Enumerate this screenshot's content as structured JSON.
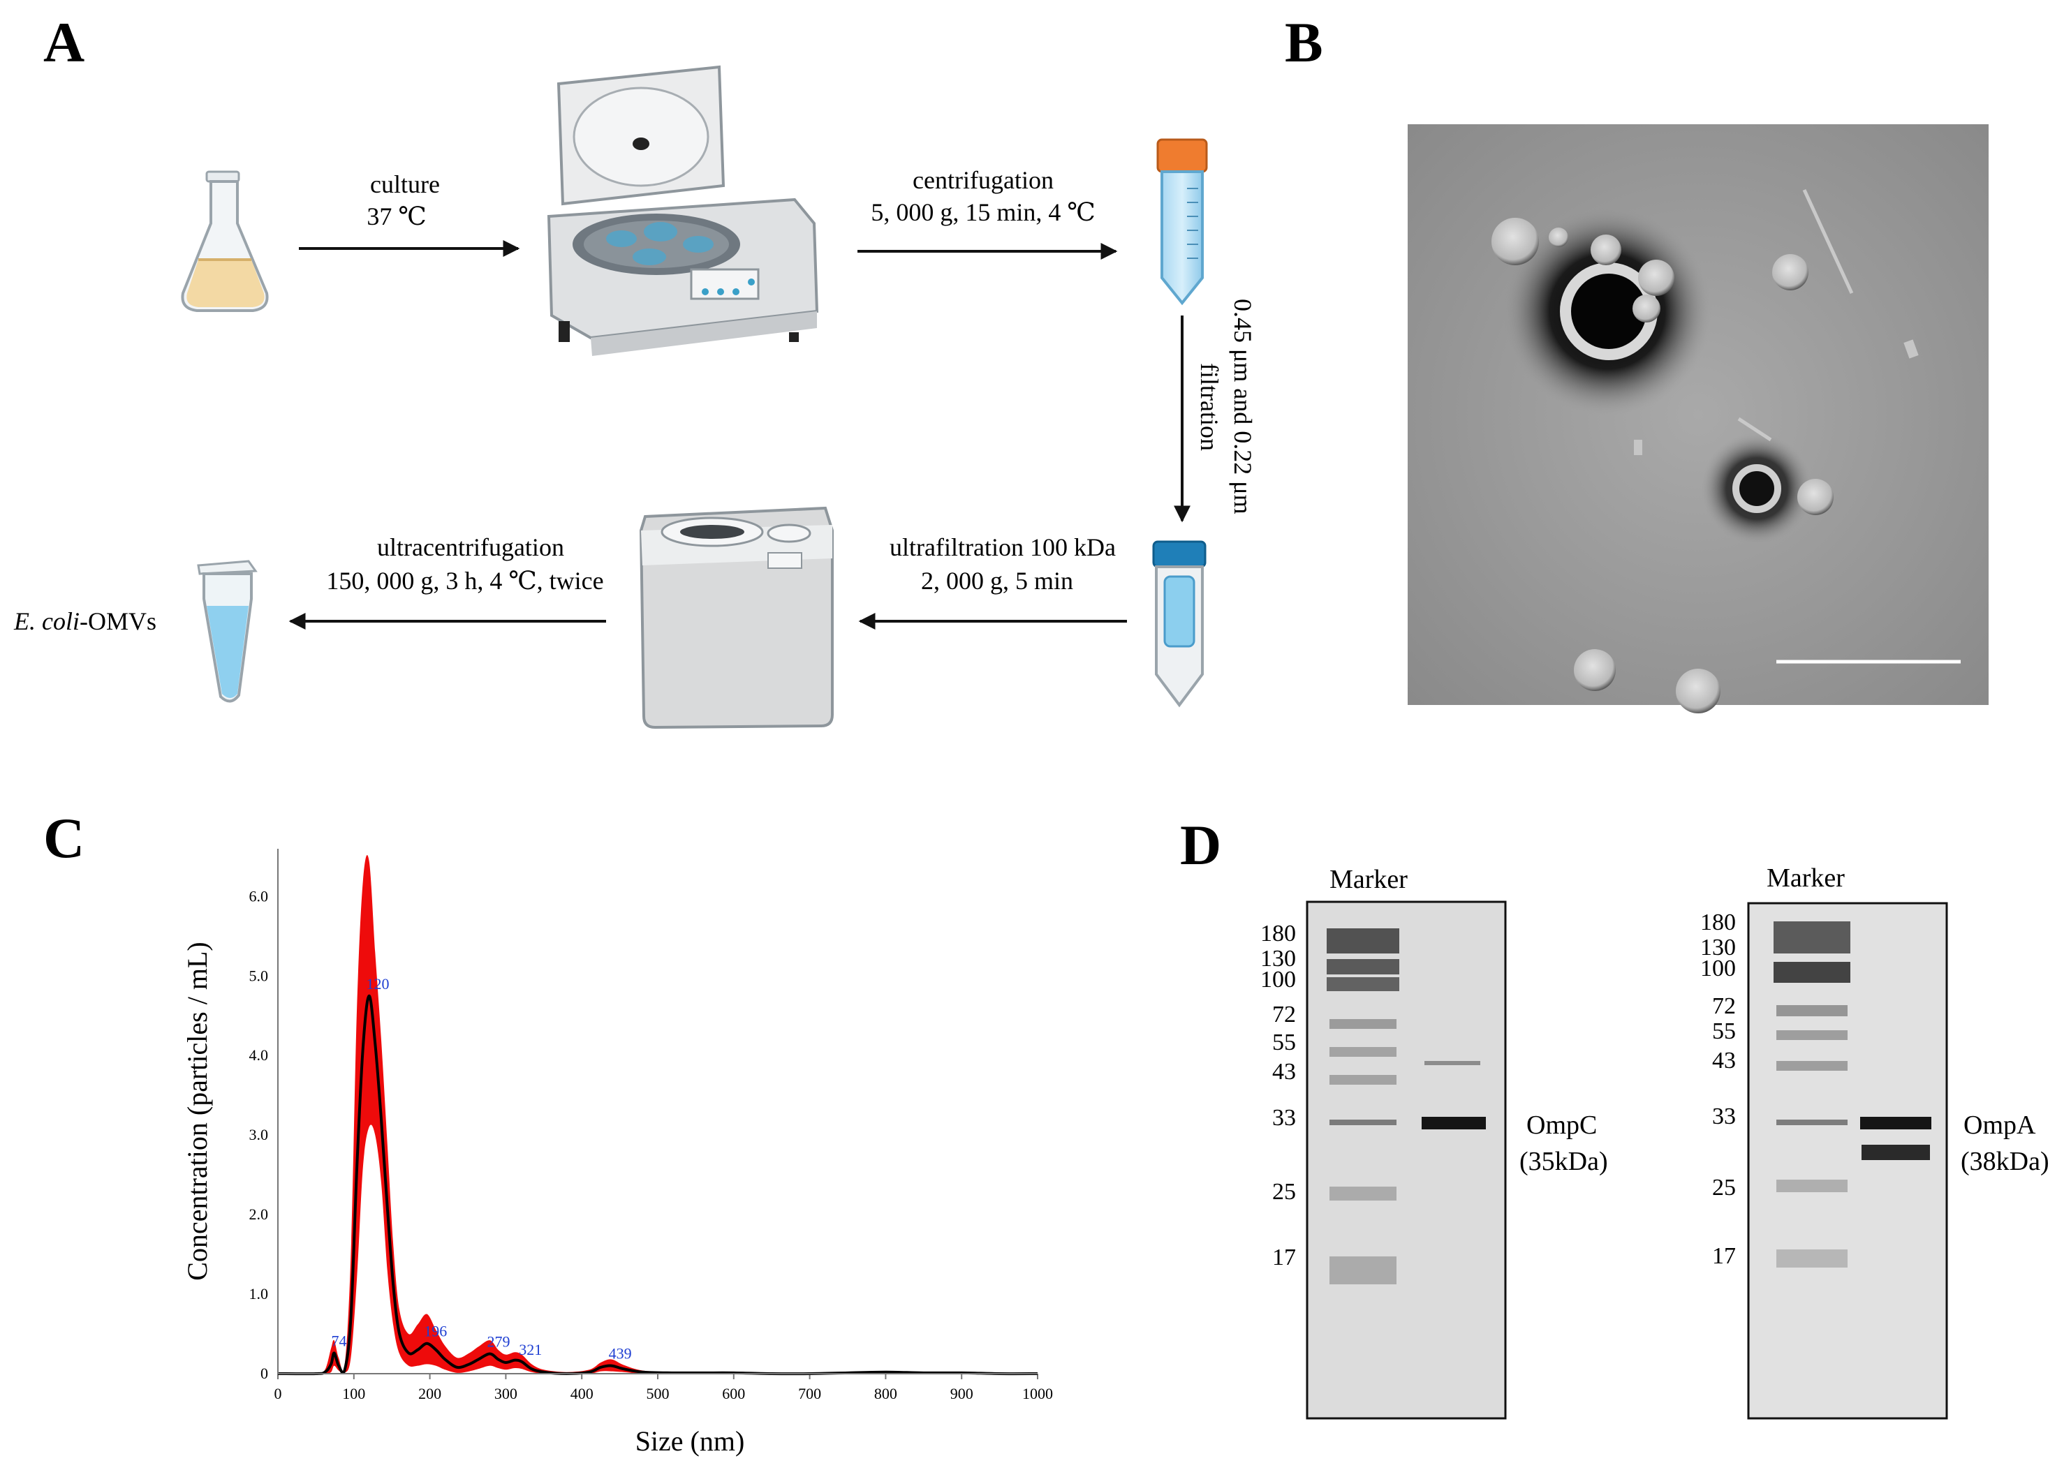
{
  "panels": {
    "A": {
      "letter": "A",
      "steps": {
        "s1": [
          "culture",
          "37 ℃"
        ],
        "s2": [
          "centrifugation",
          "5, 000 g, 15 min, 4 ℃"
        ],
        "s3": [
          "0.45 μm and 0.22 μm",
          "filtration"
        ],
        "s4": [
          "ultrafiltration 100 kDa",
          "2, 000 g, 5 min"
        ],
        "s5": [
          "ultracentrifugation",
          "150, 000 g, 3 h, 4 ℃, twice"
        ]
      },
      "product_italic": "E. coli",
      "product_rest": "-OMVs"
    },
    "B": {
      "letter": "B"
    },
    "C": {
      "letter": "C"
    },
    "D": {
      "letter": "D",
      "blots": [
        {
          "marker_label": "Marker",
          "ladder": [
            "180",
            "130",
            "100",
            "72",
            "55",
            "43",
            "33",
            "25",
            "17"
          ],
          "protein": "OmpC",
          "mass": "(35kDa)"
        },
        {
          "marker_label": "Marker",
          "ladder": [
            "180",
            "130",
            "100",
            "72",
            "55",
            "43",
            "33",
            "25",
            "17"
          ],
          "protein": "OmpA",
          "mass": "(38kDa)"
        }
      ]
    }
  },
  "chart_data": {
    "type": "area",
    "xlabel": "Size (nm)",
    "ylabel": "Concentration (particles / mL)",
    "xlim": [
      0,
      1000
    ],
    "ylim": [
      0,
      6.6
    ],
    "xticks": [
      0,
      100,
      200,
      300,
      400,
      500,
      600,
      700,
      800,
      900,
      1000
    ],
    "yticks": [
      {
        "v": 0,
        "label": "0"
      },
      {
        "v": 1,
        "label": "1.0"
      },
      {
        "v": 2,
        "label": "2.0"
      },
      {
        "v": 3,
        "label": "3.0"
      },
      {
        "v": 4,
        "label": "4.0"
      },
      {
        "v": 5,
        "label": "5.0"
      },
      {
        "v": 6,
        "label": "6.0"
      }
    ],
    "mean": {
      "x": [
        0,
        50,
        62,
        70,
        74,
        80,
        88,
        96,
        104,
        112,
        120,
        128,
        136,
        144,
        152,
        160,
        172,
        184,
        196,
        208,
        220,
        236,
        252,
        264,
        279,
        290,
        300,
        312,
        321,
        334,
        350,
        380,
        410,
        425,
        439,
        455,
        480,
        520,
        560,
        600,
        650,
        700,
        750,
        800,
        850,
        900,
        950,
        1000
      ],
      "y": [
        0,
        0,
        0.02,
        0.12,
        0.26,
        0.1,
        0.05,
        0.7,
        2.6,
        4.1,
        4.75,
        4.15,
        3.2,
        2.1,
        1.1,
        0.5,
        0.26,
        0.3,
        0.38,
        0.3,
        0.18,
        0.08,
        0.12,
        0.18,
        0.25,
        0.18,
        0.14,
        0.17,
        0.15,
        0.06,
        0.02,
        0.0,
        0.02,
        0.08,
        0.1,
        0.06,
        0.02,
        0.01,
        0.01,
        0.01,
        0.0,
        0.0,
        0.01,
        0.02,
        0.01,
        0.01,
        0.0,
        0.0
      ]
    },
    "error_band": {
      "x": [
        0,
        50,
        62,
        70,
        74,
        80,
        88,
        96,
        104,
        112,
        120,
        128,
        136,
        144,
        152,
        160,
        172,
        184,
        196,
        208,
        220,
        236,
        252,
        264,
        279,
        290,
        300,
        312,
        321,
        334,
        350,
        380,
        410,
        425,
        439,
        455,
        480,
        520,
        560,
        600,
        650,
        700,
        750,
        800,
        850,
        900,
        950,
        1000
      ],
      "upper": [
        0,
        0,
        0.05,
        0.32,
        0.42,
        0.2,
        0.12,
        1.5,
        4.6,
        6.2,
        6.45,
        5.3,
        4.2,
        2.9,
        1.6,
        0.8,
        0.5,
        0.62,
        0.75,
        0.55,
        0.35,
        0.2,
        0.26,
        0.34,
        0.42,
        0.3,
        0.24,
        0.27,
        0.24,
        0.12,
        0.05,
        0.02,
        0.05,
        0.14,
        0.18,
        0.11,
        0.04,
        0.02,
        0.02,
        0.02,
        0.0,
        0.0,
        0.02,
        0.03,
        0.02,
        0.02,
        0.0,
        0.0
      ],
      "lower": [
        0,
        0,
        0,
        0.02,
        0.1,
        0.04,
        0.01,
        0.2,
        1.2,
        2.6,
        3.1,
        3.0,
        2.4,
        1.3,
        0.6,
        0.25,
        0.1,
        0.1,
        0.12,
        0.1,
        0.05,
        0.01,
        0.03,
        0.06,
        0.1,
        0.07,
        0.05,
        0.07,
        0.06,
        0.02,
        0,
        0,
        0,
        0.03,
        0.03,
        0.02,
        0,
        0,
        0,
        0,
        0,
        0,
        0,
        0.01,
        0,
        0,
        0,
        0
      ]
    },
    "peak_labels": [
      {
        "x": 74,
        "y": 0.26,
        "label": "74"
      },
      {
        "x": 120,
        "y": 4.75,
        "label": "120"
      },
      {
        "x": 196,
        "y": 0.38,
        "label": "196"
      },
      {
        "x": 279,
        "y": 0.25,
        "label": "279"
      },
      {
        "x": 321,
        "y": 0.15,
        "label": "321"
      },
      {
        "x": 439,
        "y": 0.1,
        "label": "439"
      }
    ],
    "colors": {
      "band": "#ee0b0b",
      "mean": "#000000",
      "peak_label": "#1f3fd2"
    }
  }
}
